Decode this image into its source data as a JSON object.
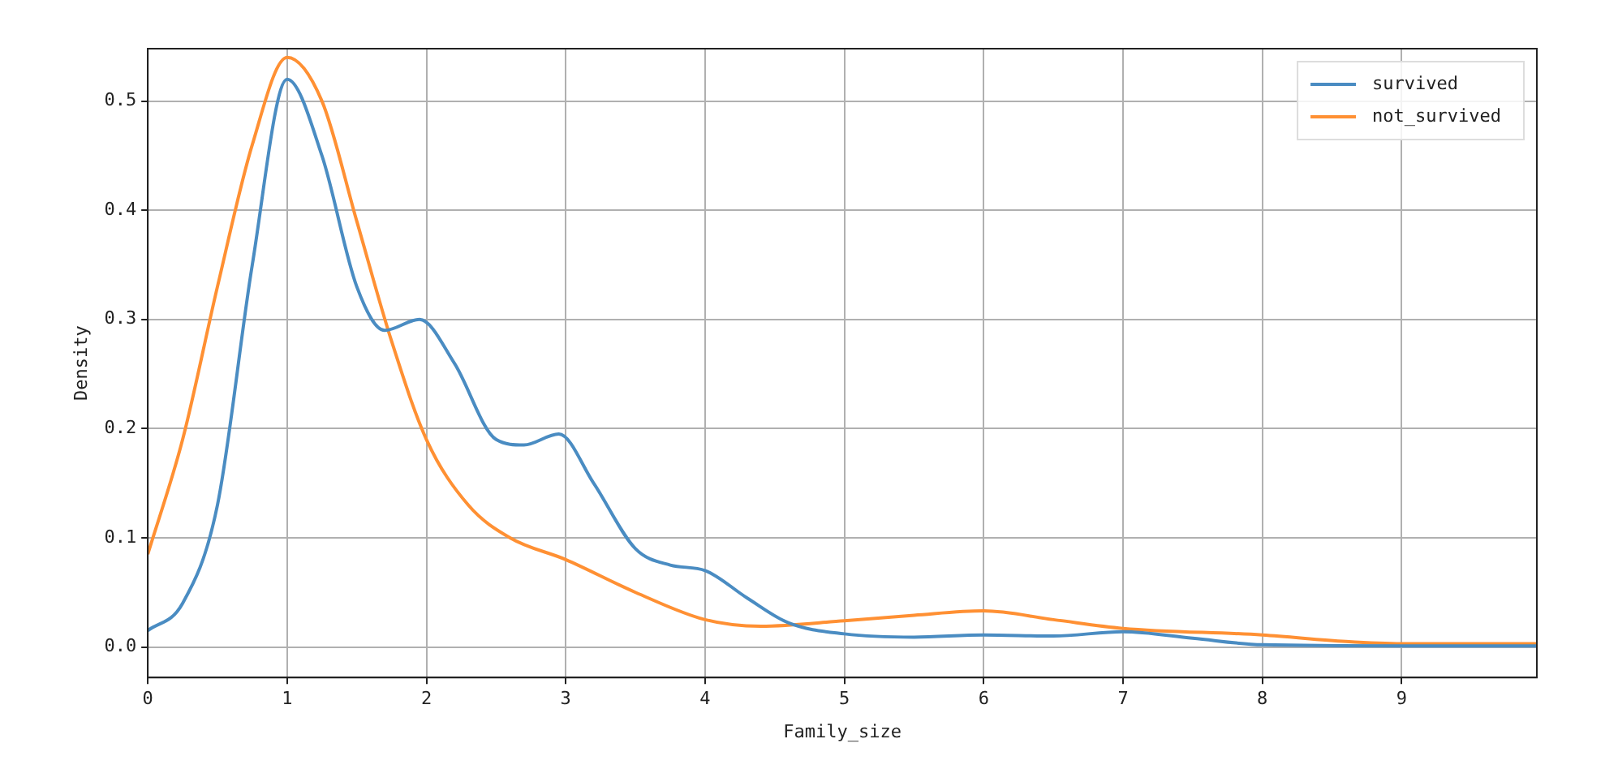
{
  "chart_data": {
    "type": "line",
    "xlabel": "Family_size",
    "ylabel": "Density",
    "xlim": [
      0,
      9.97
    ],
    "xticks": [
      0,
      1,
      2,
      3,
      4,
      5,
      6,
      7,
      8,
      9
    ],
    "ylim": [
      -0.028,
      0.548
    ],
    "yticks": [
      {
        "value": 0,
        "label": "0.0"
      },
      {
        "value": 0.1,
        "label": "0.1"
      },
      {
        "value": 0.2,
        "label": "0.2"
      },
      {
        "value": 0.3,
        "label": "0.3"
      },
      {
        "value": 0.4,
        "label": "0.4"
      },
      {
        "value": 0.5,
        "label": "0.5"
      }
    ],
    "grid": true,
    "legend": "top right",
    "marker": "none",
    "series": [
      {
        "name": "survived",
        "color": "#4a8cc2",
        "x": [
          0,
          0.25,
          0.5,
          0.75,
          1.0,
          1.25,
          1.5,
          1.7,
          1.95,
          2.2,
          2.5,
          2.7,
          2.95,
          3.2,
          3.5,
          3.75,
          4.0,
          4.3,
          4.6,
          5.0,
          5.5,
          6.0,
          6.5,
          7.0,
          7.5,
          8.0,
          9.0,
          9.97
        ],
        "values": [
          0.015,
          0.04,
          0.13,
          0.35,
          0.52,
          0.45,
          0.33,
          0.29,
          0.3,
          0.26,
          0.19,
          0.185,
          0.195,
          0.15,
          0.09,
          0.075,
          0.07,
          0.045,
          0.022,
          0.012,
          0.009,
          0.011,
          0.01,
          0.014,
          0.008,
          0.002,
          0.001,
          0.001
        ]
      },
      {
        "name": "not_survived",
        "color": "#ff9033",
        "x": [
          0,
          0.25,
          0.5,
          0.75,
          1.0,
          1.25,
          1.5,
          1.75,
          2.0,
          2.3,
          2.6,
          3.0,
          3.5,
          4.0,
          4.4,
          5.0,
          5.5,
          6.0,
          6.5,
          7.0,
          8.0,
          8.6,
          9.0,
          9.97
        ],
        "values": [
          0.085,
          0.19,
          0.33,
          0.46,
          0.54,
          0.5,
          0.39,
          0.28,
          0.19,
          0.13,
          0.1,
          0.08,
          0.05,
          0.025,
          0.019,
          0.024,
          0.029,
          0.033,
          0.025,
          0.017,
          0.011,
          0.005,
          0.003,
          0.003
        ]
      }
    ]
  }
}
